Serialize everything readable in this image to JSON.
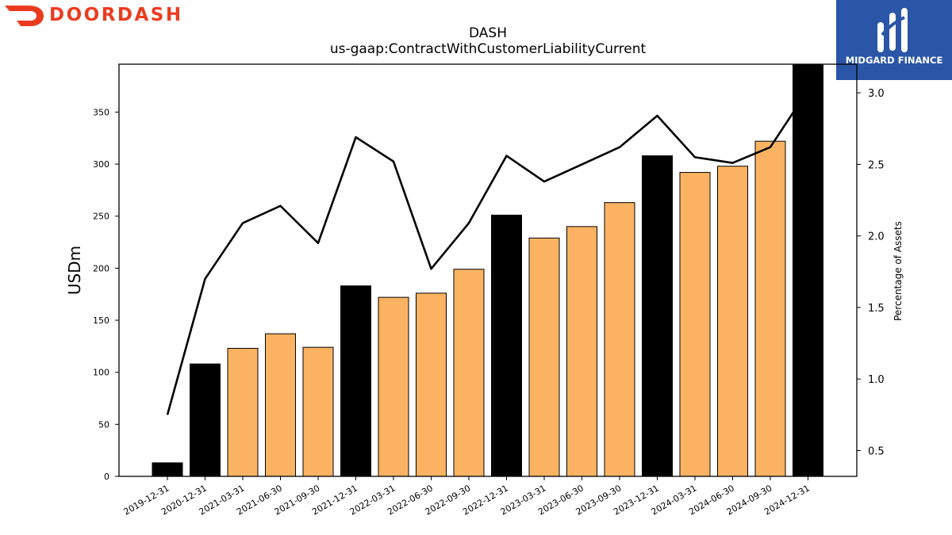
{
  "brand": {
    "left_logo_text": "DOORDASH",
    "right_logo_text": "MIDGARD FINANCE",
    "left_logo_color": "#eb3b1f",
    "right_logo_bg": "#2b56a8"
  },
  "chart_data": {
    "type": "bar",
    "title": "DASH",
    "subtitle": "us-gaap:ContractWithCustomerLiabilityCurrent",
    "ylabel": "USDm",
    "y2label": "Percentage of Assets",
    "categories": [
      "2019-12-31",
      "2020-12-31",
      "2021-03-31",
      "2021-06-30",
      "2021-09-30",
      "2021-12-31",
      "2022-03-31",
      "2022-06-30",
      "2022-09-30",
      "2022-12-31",
      "2023-03-31",
      "2023-06-30",
      "2023-09-30",
      "2023-12-31",
      "2024-03-31",
      "2024-06-30",
      "2024-09-30",
      "2024-12-31"
    ],
    "series": [
      {
        "values": [
          13,
          108,
          123,
          137,
          124,
          183,
          172,
          176,
          199,
          251,
          229,
          240,
          263,
          308,
          292,
          298,
          322,
          398
        ],
        "colors": [
          "#000000",
          "#000000",
          "#fbb363",
          "#fbb363",
          "#fbb363",
          "#000000",
          "#fbb363",
          "#fbb363",
          "#fbb363",
          "#000000",
          "#fbb363",
          "#fbb363",
          "#fbb363",
          "#000000",
          "#fbb363",
          "#fbb363",
          "#fbb363",
          "#000000"
        ]
      },
      {
        "axis": "right",
        "type": "line",
        "color": "#000000",
        "values": [
          0.75,
          1.7,
          2.09,
          2.21,
          1.95,
          2.69,
          2.52,
          1.77,
          2.09,
          2.56,
          2.38,
          2.5,
          2.62,
          2.84,
          2.55,
          2.51,
          2.62,
          3.02
        ]
      }
    ],
    "ylim": [
      0,
      396
    ],
    "y2lim": [
      0.32,
      3.2
    ],
    "yticks": [
      0,
      50,
      100,
      150,
      200,
      250,
      300,
      350
    ],
    "y2ticks": [
      0.5,
      1.0,
      1.5,
      2.0,
      2.5,
      3.0
    ],
    "grid": false,
    "legend": "none"
  }
}
